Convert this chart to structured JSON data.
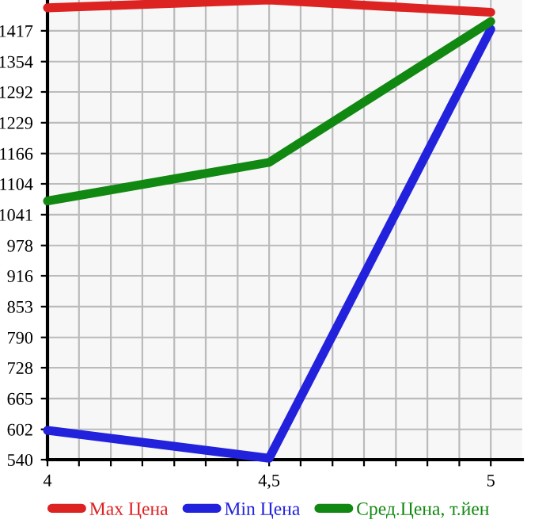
{
  "chart_data": {
    "type": "line",
    "x": [
      4,
      4.5,
      5
    ],
    "series": [
      {
        "name": "Max Цена",
        "color": "#dd2222",
        "values": [
          1464,
          1480,
          1455
        ]
      },
      {
        "name": "Min Цена",
        "color": "#2222dd",
        "values": [
          600,
          543,
          1420
        ]
      },
      {
        "name": "Сред.Цена, т.йен",
        "color": "#118811",
        "values": [
          1069,
          1148,
          1436
        ]
      }
    ],
    "xlim": [
      4,
      5.071
    ],
    "xticks": [
      4,
      {
        "value": 4.071,
        "label": null
      },
      {
        "value": 4.143,
        "label": null
      },
      {
        "value": 4.214,
        "label": null
      },
      {
        "value": 4.286,
        "label": null
      },
      {
        "value": 4.357,
        "label": null
      },
      {
        "value": 4.429,
        "label": null
      },
      {
        "value": 4.5,
        "label": "4,5"
      },
      {
        "value": 4.571,
        "label": null
      },
      {
        "value": 4.643,
        "label": null
      },
      {
        "value": 4.714,
        "label": null
      },
      {
        "value": 4.786,
        "label": null
      },
      {
        "value": 4.857,
        "label": null
      },
      {
        "value": 4.929,
        "label": null
      },
      5
    ],
    "ylim": [
      540,
      1480
    ],
    "yticks": [
      540,
      602,
      665,
      728,
      790,
      853,
      916,
      978,
      1041,
      1104,
      1166,
      1229,
      1292,
      1354,
      1417
    ],
    "grid": true,
    "legend": "bottom",
    "marker": "none",
    "line_style": "solid"
  }
}
